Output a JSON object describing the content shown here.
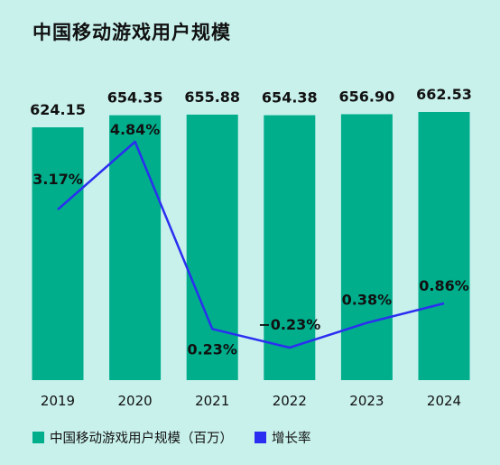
{
  "chart_data": {
    "type": "bar",
    "title": "中国移动游戏用户规模",
    "categories": [
      "2019",
      "2020",
      "2021",
      "2022",
      "2023",
      "2024"
    ],
    "series": [
      {
        "name": "中国移动游戏用户规模（百万）",
        "type": "bar",
        "values": [
          624.15,
          654.35,
          655.88,
          654.38,
          656.9,
          662.53
        ],
        "labels": [
          "624.15",
          "654.35",
          "655.88",
          "654.38",
          "656.90",
          "662.53"
        ],
        "color": "#00ae8c"
      },
      {
        "name": "增长率",
        "type": "line",
        "values": [
          3.17,
          4.84,
          0.23,
          -0.23,
          0.38,
          0.86
        ],
        "labels": [
          "3.17%",
          "4.84%",
          "0.23%",
          "−0.23%",
          "0.38%",
          "0.86%"
        ],
        "color": "#2b2ef0"
      }
    ],
    "legend_position": "bottom-left",
    "grid": false
  }
}
